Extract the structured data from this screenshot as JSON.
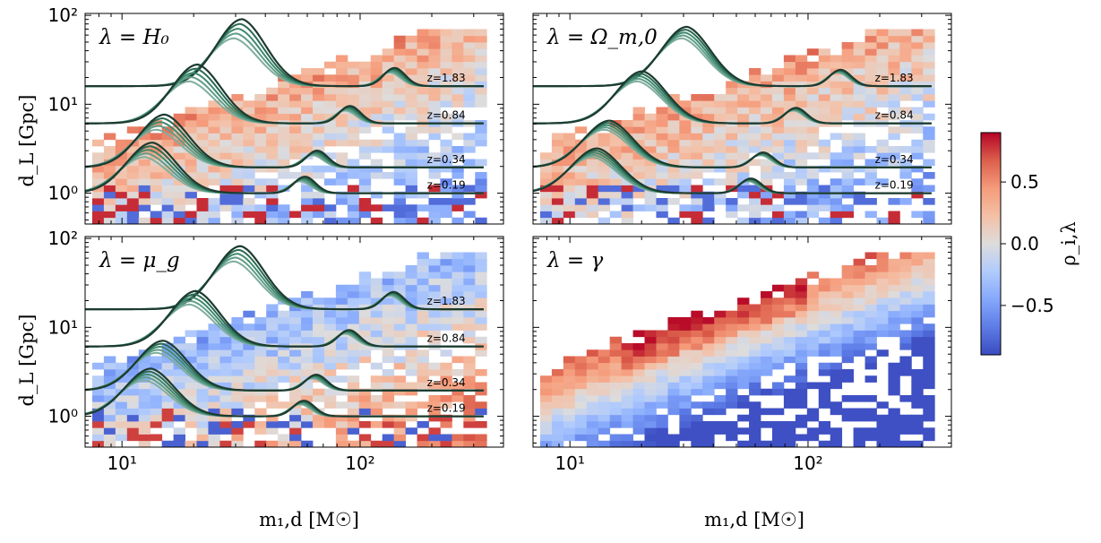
{
  "figure": {
    "xlabel": "m₁,d [M☉]",
    "ylabel": "d_L [Gpc]",
    "xlim": [
      7,
      400
    ],
    "ylim": [
      0.45,
      105
    ],
    "xscale": "log",
    "yscale": "log",
    "x_ticks": [
      {
        "value": 10,
        "label": "10¹"
      },
      {
        "value": 100,
        "label": "10²"
      }
    ],
    "y_ticks": [
      {
        "value": 1,
        "label": "10⁰"
      },
      {
        "value": 10,
        "label": "10¹"
      },
      {
        "value": 100,
        "label": "10²"
      }
    ]
  },
  "colorbar": {
    "label": "ρ_i,λ",
    "range": [
      -0.9,
      0.9
    ],
    "ticks": [
      {
        "value": 0.5,
        "label": "0.5"
      },
      {
        "value": 0.0,
        "label": "0.0"
      },
      {
        "value": -0.5,
        "label": "−0.5"
      }
    ],
    "colormap": "coolwarm"
  },
  "chart_data": [
    {
      "type": "heatmap",
      "title": "λ = H₀",
      "sign": 1,
      "redshifts": [
        {
          "z": 1.83,
          "label": "z=1.83",
          "dL": 16.0
        },
        {
          "z": 0.84,
          "label": "z=0.84",
          "dL": 6.1
        },
        {
          "z": 0.34,
          "label": "z=0.34",
          "dL": 1.95
        },
        {
          "z": 0.19,
          "label": "z=0.19",
          "dL": 1.0
        }
      ],
      "curve_peak_scale": [
        1.0,
        1.1,
        1.2,
        1.3,
        1.4
      ],
      "curve_colors": [
        "#7fae9f",
        "#5f9c88",
        "#3f8a6e",
        "#2a6a52",
        "#1d3b30"
      ]
    },
    {
      "type": "heatmap",
      "title": "λ = Ω_m,0",
      "sign": 1,
      "redshifts": [
        {
          "z": 1.83,
          "label": "z=1.83",
          "dL": 16.0
        },
        {
          "z": 0.84,
          "label": "z=0.84",
          "dL": 6.1
        },
        {
          "z": 0.34,
          "label": "z=0.34",
          "dL": 1.95
        },
        {
          "z": 0.19,
          "label": "z=0.19",
          "dL": 1.0
        }
      ],
      "curve_peak_scale": [
        1.0,
        1.06,
        1.12,
        1.18,
        1.24
      ],
      "curve_colors": [
        "#7fae9f",
        "#5f9c88",
        "#3f8a6e",
        "#2a6a52",
        "#1d3b30"
      ]
    },
    {
      "type": "heatmap",
      "title": "λ = μ_g",
      "sign": -1,
      "redshifts": [
        {
          "z": 1.83,
          "label": "z=1.83",
          "dL": 16.0
        },
        {
          "z": 0.84,
          "label": "z=0.84",
          "dL": 6.1
        },
        {
          "z": 0.34,
          "label": "z=0.34",
          "dL": 1.95
        },
        {
          "z": 0.19,
          "label": "z=0.19",
          "dL": 1.0
        }
      ],
      "curve_peak_scale": [
        1.0,
        1.08,
        1.16,
        1.24,
        1.32
      ],
      "curve_colors": [
        "#7fae9f",
        "#5f9c88",
        "#3f8a6e",
        "#2a6a52",
        "#1d3b30"
      ]
    },
    {
      "type": "heatmap",
      "title": "λ = γ",
      "sign": 2,
      "redshifts": [],
      "curve_peak_scale": [],
      "curve_colors": []
    }
  ]
}
